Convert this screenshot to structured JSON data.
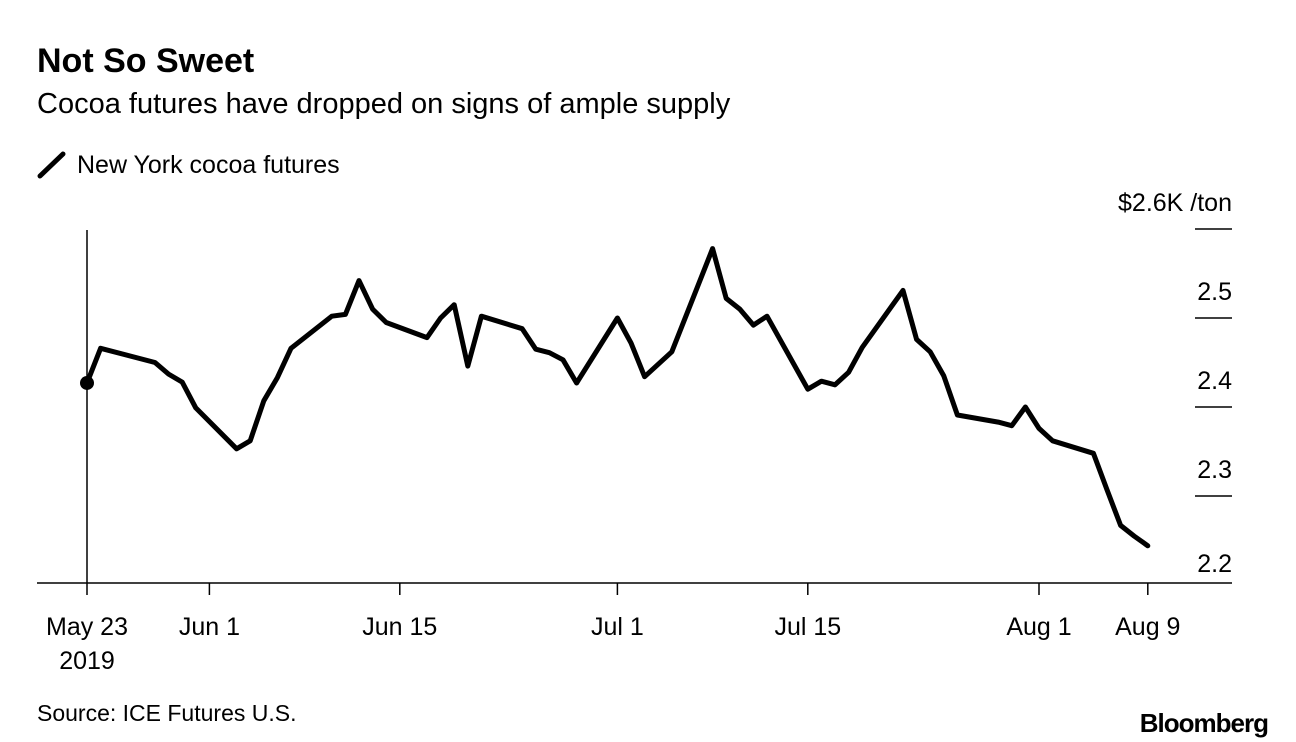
{
  "chart_data": {
    "type": "line",
    "title": "Not So Sweet",
    "subtitle": "Cocoa futures have dropped on signs of ample supply",
    "legend": [
      "New York cocoa futures"
    ],
    "ylabel": "$2.6K /ton",
    "ylim": [
      2.2,
      2.6
    ],
    "yticks": [
      {
        "value": 2.6,
        "label": "$2.6K /ton"
      },
      {
        "value": 2.5,
        "label": "2.5"
      },
      {
        "value": 2.4,
        "label": "2.4"
      },
      {
        "value": 2.3,
        "label": "2.3"
      },
      {
        "value": 2.2,
        "label": "2.2"
      }
    ],
    "xticks": [
      {
        "date": "2019-05-23",
        "label": "May 23",
        "label2": "2019"
      },
      {
        "date": "2019-06-01",
        "label": "Jun 1"
      },
      {
        "date": "2019-06-15",
        "label": "Jun 15"
      },
      {
        "date": "2019-07-01",
        "label": "Jul 1"
      },
      {
        "date": "2019-07-15",
        "label": "Jul 15"
      },
      {
        "date": "2019-08-01",
        "label": "Aug 1"
      },
      {
        "date": "2019-08-09",
        "label": "Aug 9"
      }
    ],
    "xlim": [
      "2019-05-19",
      "2019-08-16"
    ],
    "series": [
      {
        "name": "New York cocoa futures",
        "color": "#000000",
        "points": [
          [
            "2019-05-23",
            2.427
          ],
          [
            "2019-05-24",
            2.466
          ],
          [
            "2019-05-28",
            2.45
          ],
          [
            "2019-05-29",
            2.437
          ],
          [
            "2019-05-30",
            2.428
          ],
          [
            "2019-05-31",
            2.399
          ],
          [
            "2019-06-03",
            2.353
          ],
          [
            "2019-06-04",
            2.362
          ],
          [
            "2019-06-05",
            2.407
          ],
          [
            "2019-06-06",
            2.433
          ],
          [
            "2019-06-07",
            2.466
          ],
          [
            "2019-06-10",
            2.502
          ],
          [
            "2019-06-11",
            2.504
          ],
          [
            "2019-06-12",
            2.542
          ],
          [
            "2019-06-13",
            2.51
          ],
          [
            "2019-06-14",
            2.495
          ],
          [
            "2019-06-17",
            2.478
          ],
          [
            "2019-06-18",
            2.5
          ],
          [
            "2019-06-19",
            2.515
          ],
          [
            "2019-06-20",
            2.446
          ],
          [
            "2019-06-21",
            2.502
          ],
          [
            "2019-06-24",
            2.488
          ],
          [
            "2019-06-25",
            2.465
          ],
          [
            "2019-06-26",
            2.461
          ],
          [
            "2019-06-27",
            2.453
          ],
          [
            "2019-06-28",
            2.427
          ],
          [
            "2019-07-01",
            2.5
          ],
          [
            "2019-07-02",
            2.472
          ],
          [
            "2019-07-03",
            2.434
          ],
          [
            "2019-07-05",
            2.462
          ],
          [
            "2019-07-08",
            2.578
          ],
          [
            "2019-07-09",
            2.522
          ],
          [
            "2019-07-10",
            2.51
          ],
          [
            "2019-07-11",
            2.492
          ],
          [
            "2019-07-12",
            2.502
          ],
          [
            "2019-07-15",
            2.42
          ],
          [
            "2019-07-16",
            2.429
          ],
          [
            "2019-07-17",
            2.425
          ],
          [
            "2019-07-18",
            2.439
          ],
          [
            "2019-07-19",
            2.467
          ],
          [
            "2019-07-22",
            2.531
          ],
          [
            "2019-07-23",
            2.476
          ],
          [
            "2019-07-24",
            2.462
          ],
          [
            "2019-07-25",
            2.435
          ],
          [
            "2019-07-26",
            2.391
          ],
          [
            "2019-07-29",
            2.383
          ],
          [
            "2019-07-30",
            2.379
          ],
          [
            "2019-07-31",
            2.4
          ],
          [
            "2019-08-01",
            2.376
          ],
          [
            "2019-08-02",
            2.362
          ],
          [
            "2019-08-05",
            2.348
          ],
          [
            "2019-08-06",
            2.307
          ],
          [
            "2019-08-07",
            2.267
          ],
          [
            "2019-08-08",
            2.255
          ],
          [
            "2019-08-09",
            2.244
          ]
        ]
      }
    ],
    "grid": false
  },
  "source": "Source: ICE Futures U.S.",
  "logo": "Bloomberg"
}
